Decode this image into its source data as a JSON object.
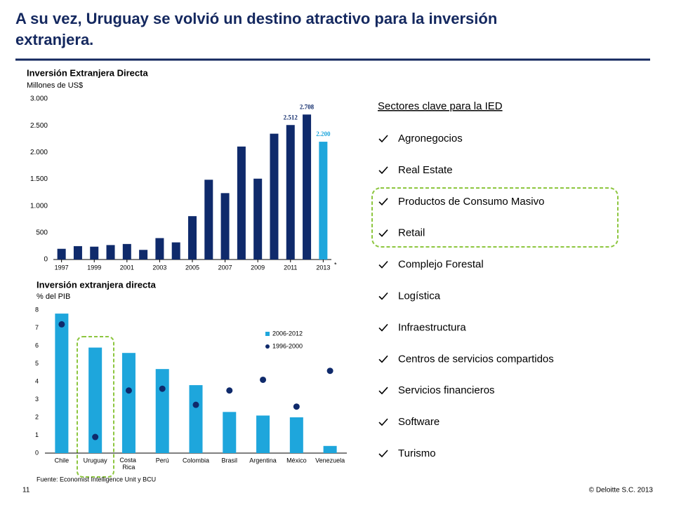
{
  "header": {
    "title_lines": [
      "A su vez, Uruguay se volvió un destino atractivo para la inversión",
      "extranjera."
    ]
  },
  "chart_data": [
    {
      "type": "bar",
      "title": "Inversión Extranjera Directa",
      "subtitle": "Millones de US$",
      "categories": [
        "1997",
        null,
        "1999",
        null,
        "2001",
        null,
        "2003",
        null,
        "2005",
        null,
        "2007",
        null,
        "2009",
        null,
        "2011",
        null,
        "2013"
      ],
      "values": [
        200,
        250,
        240,
        270,
        290,
        180,
        400,
        320,
        810,
        1490,
        1240,
        2110,
        1510,
        2350,
        2512,
        2708,
        2200
      ],
      "value_labels": [
        null,
        null,
        null,
        null,
        null,
        null,
        null,
        null,
        null,
        null,
        null,
        null,
        null,
        null,
        "2.512",
        "2.708",
        "2.200"
      ],
      "colors": [
        "#0f2a6b",
        "#0f2a6b",
        "#0f2a6b",
        "#0f2a6b",
        "#0f2a6b",
        "#0f2a6b",
        "#0f2a6b",
        "#0f2a6b",
        "#0f2a6b",
        "#0f2a6b",
        "#0f2a6b",
        "#0f2a6b",
        "#0f2a6b",
        "#0f2a6b",
        "#0f2a6b",
        "#0f2a6b",
        "#1ea6dc"
      ],
      "annotation": "*",
      "ylim": [
        0,
        3000
      ],
      "yticks": [
        0,
        500,
        {
          "value": 1000,
          "label": "1.000"
        },
        {
          "value": 1500,
          "label": "1.500"
        },
        {
          "value": 2000,
          "label": "2.000"
        },
        {
          "value": 2500,
          "label": "2.500"
        },
        {
          "value": 3000,
          "label": "3.000"
        }
      ]
    },
    {
      "type": "combo",
      "title": "Inversión extranjera directa",
      "subtitle": "% del PIB",
      "categories": [
        "Chile",
        "Uruguay",
        "Costa Rica",
        "Perú",
        "Colombia",
        "Brasil",
        "Argentina",
        "México",
        "Venezuela"
      ],
      "series": [
        {
          "name": "2006-2012",
          "type": "bar",
          "color": "#1ea6dc",
          "values": [
            7.8,
            5.9,
            5.6,
            4.7,
            3.8,
            2.3,
            2.1,
            2.0,
            0.4
          ]
        },
        {
          "name": "1996-2000",
          "type": "scatter",
          "color": "#0f2a6b",
          "values": [
            7.2,
            0.9,
            3.5,
            3.6,
            2.7,
            3.5,
            4.1,
            2.6,
            4.6
          ]
        }
      ],
      "ylim": [
        0,
        8
      ],
      "yticks": [
        0,
        1,
        2,
        3,
        4,
        5,
        6,
        7,
        8
      ],
      "source": "Fuente: Economist Intelligence Unit y BCU"
    }
  ],
  "sectors": {
    "heading": "Sectores clave para la IED",
    "items": [
      "Agronegocios",
      "Real Estate",
      "Productos de Consumo Masivo",
      "Retail",
      "Complejo Forestal",
      "Logística",
      "Infraestructura",
      "Centros de servicios compartidos",
      "Servicios financieros",
      "Software",
      "Turismo"
    ]
  },
  "footer": {
    "page": "11",
    "copyright": "© Deloitte S.C. 2013"
  }
}
